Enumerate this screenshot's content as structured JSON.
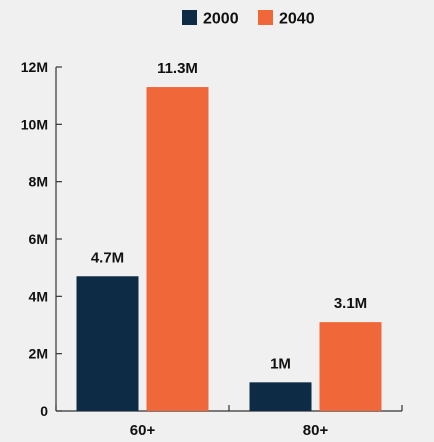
{
  "chart_data": {
    "type": "bar",
    "categories": [
      "60+",
      "80+"
    ],
    "series": [
      {
        "name": "2000",
        "color": "#0d2b45",
        "values": [
          4.7,
          1.0
        ],
        "labels": [
          "4.7M",
          "1M"
        ]
      },
      {
        "name": "2040",
        "color": "#f0683a",
        "values": [
          11.3,
          3.1
        ],
        "labels": [
          "11.3M",
          "3.1M"
        ]
      }
    ],
    "y_ticks": [
      {
        "value": 0,
        "label": "0"
      },
      {
        "value": 2,
        "label": "2M"
      },
      {
        "value": 4,
        "label": "4M"
      },
      {
        "value": 6,
        "label": "6M"
      },
      {
        "value": 8,
        "label": "8M"
      },
      {
        "value": 10,
        "label": "10M"
      },
      {
        "value": 12,
        "label": "12M"
      }
    ],
    "ylim": [
      0,
      12
    ],
    "grid": false,
    "legend_position": "top-center",
    "title": "",
    "xlabel": "",
    "ylabel": ""
  }
}
